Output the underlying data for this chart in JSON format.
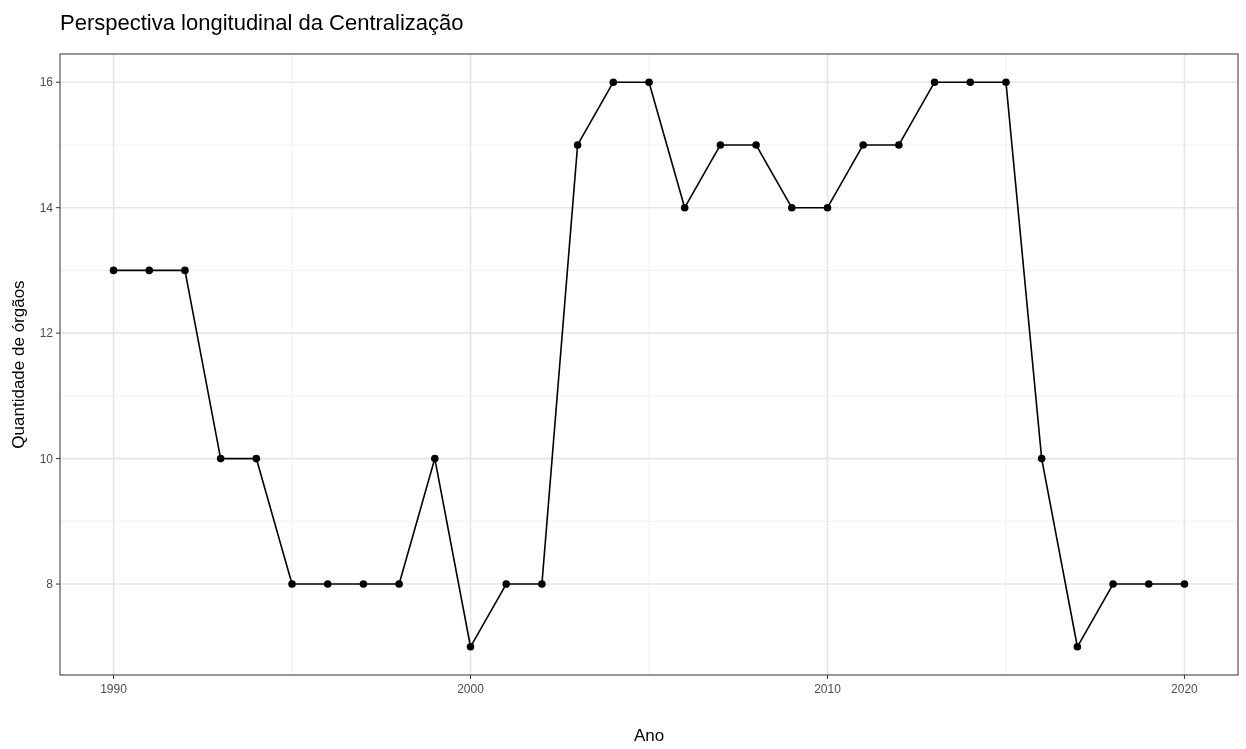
{
  "chart_data": {
    "type": "line",
    "title": "Perspectiva longitudinal da Centralização",
    "xlabel": "Ano",
    "ylabel": "Quantidade de órgãos",
    "x": [
      1990,
      1991,
      1992,
      1993,
      1994,
      1995,
      1996,
      1997,
      1998,
      1999,
      2000,
      2001,
      2002,
      2003,
      2004,
      2005,
      2006,
      2007,
      2008,
      2009,
      2010,
      2011,
      2012,
      2013,
      2014,
      2015,
      2016,
      2017,
      2018,
      2019,
      2020
    ],
    "series": [
      {
        "color": "#000000",
        "values": [
          13,
          13,
          13,
          10,
          10,
          8,
          8,
          8,
          8,
          10,
          7,
          8,
          8,
          15,
          16,
          16,
          14,
          15,
          15,
          14,
          14,
          15,
          15,
          16,
          16,
          16,
          10,
          7,
          8,
          8,
          8
        ]
      }
    ],
    "xlim": [
      1988.5,
      2021.5
    ],
    "xticks": [
      1990,
      2000,
      2010,
      2020
    ],
    "ylim": [
      6.55,
      16.45
    ],
    "yticks": [
      8,
      10,
      12,
      14,
      16
    ],
    "grid": true,
    "marker": "circle",
    "line_style": "solid"
  }
}
